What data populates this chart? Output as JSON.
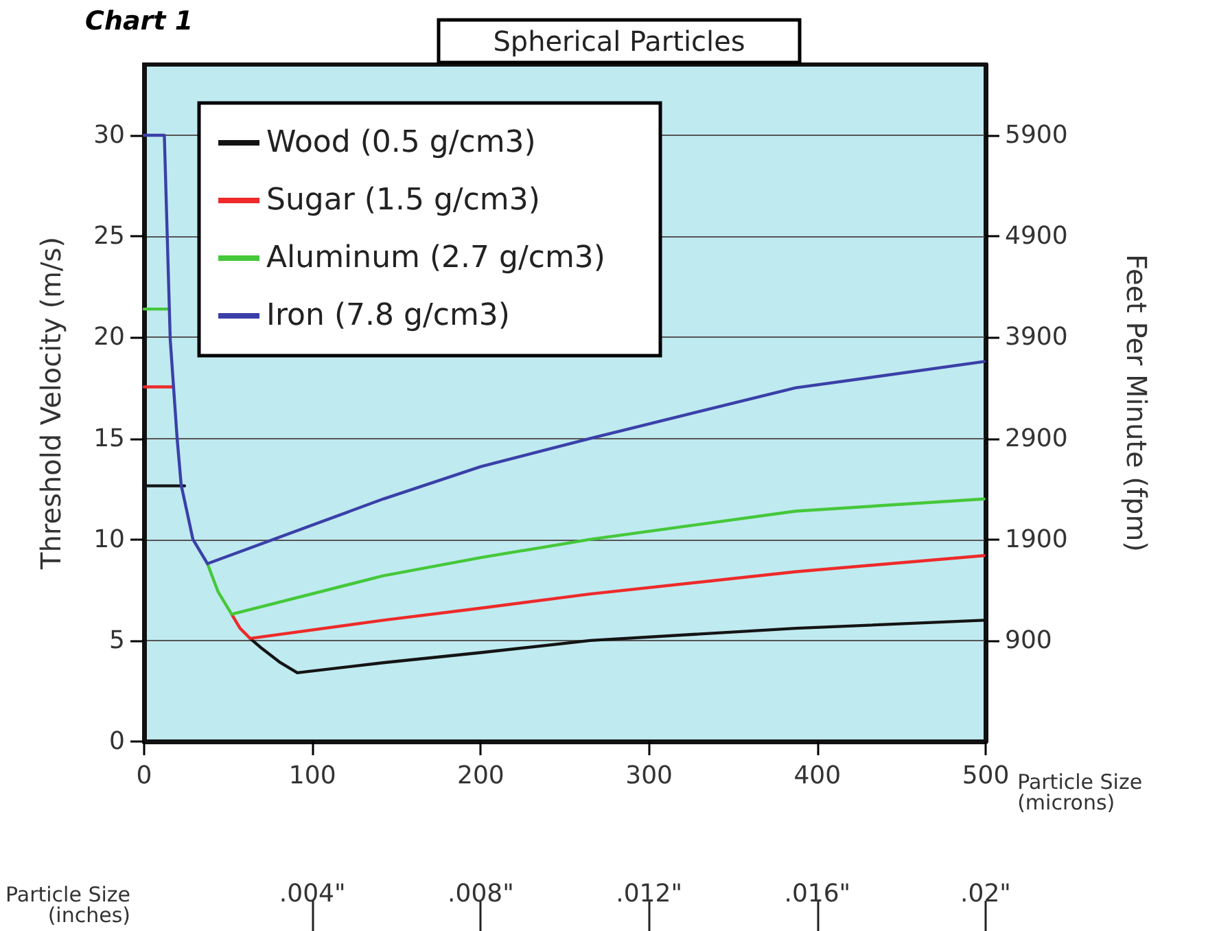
{
  "chart_data": {
    "type": "line",
    "title": "Spherical Particles",
    "annotations": [
      "Chart 1"
    ],
    "xlabel": "Particle Size\n(microns)",
    "x2label": "Particle Size\n(inches)",
    "ylabel": "Threshold Velocity (m/s)",
    "y2label": "Feet Per Minute (fpm)",
    "xlim": [
      0,
      500
    ],
    "xticks": [
      0,
      100,
      200,
      300,
      400,
      500
    ],
    "x2lim": [
      0,
      0.02
    ],
    "x2ticks": [
      {
        "value": 0.004,
        "label": ".004\""
      },
      {
        "value": 0.008,
        "label": ".008\""
      },
      {
        "value": 0.012,
        "label": ".012\""
      },
      {
        "value": 0.016,
        "label": ".016\""
      },
      {
        "value": 0.02,
        "label": ".02\""
      }
    ],
    "ylim": [
      0,
      33.5
    ],
    "yticks": [
      0,
      5,
      10,
      15,
      20,
      25,
      30
    ],
    "y2lim": [
      -100,
      6600
    ],
    "y2ticks": [
      900,
      1900,
      2900,
      3900,
      4900,
      5900
    ],
    "grid": "y",
    "legend": "top left",
    "marker": "none",
    "line_style": "solid",
    "series": [
      {
        "name": "Wood (0.5 g/cm3)",
        "color": "#141414",
        "x": [
          0,
          24,
          40,
          63,
          70,
          81,
          91,
          142,
          200,
          265,
          387,
          499
        ],
        "values": [
          12.65,
          12.65,
          null,
          5.1,
          4.6,
          3.9,
          3.4,
          3.9,
          4.4,
          5.0,
          5.6,
          6.0
        ]
      },
      {
        "name": "Sugar (1.5 g/cm3)",
        "color": "#ee2a2a",
        "x": [
          0,
          17,
          35,
          52,
          57,
          63,
          142,
          200,
          265,
          387,
          499
        ],
        "values": [
          17.55,
          17.55,
          null,
          6.3,
          5.6,
          5.1,
          6.0,
          6.6,
          7.3,
          8.4,
          9.2
        ]
      },
      {
        "name": "Aluminum (2.7 g/cm3)",
        "color": "#45c83a",
        "x": [
          0,
          15,
          26,
          37.6,
          44,
          52,
          142,
          200,
          265,
          387,
          499
        ],
        "values": [
          21.4,
          21.4,
          null,
          8.8,
          7.4,
          6.3,
          8.2,
          9.1,
          10.0,
          11.4,
          12.0
        ]
      },
      {
        "name": "Iron (7.8 g/cm3)",
        "color": "#3a40a8",
        "x": [
          0,
          12,
          15.5,
          19.6,
          22,
          29,
          37.6,
          142,
          200,
          265,
          387,
          499
        ],
        "values": [
          30,
          30,
          19.9,
          15,
          12.7,
          10,
          8.8,
          12.0,
          13.6,
          15.0,
          17.5,
          18.8
        ]
      }
    ]
  }
}
